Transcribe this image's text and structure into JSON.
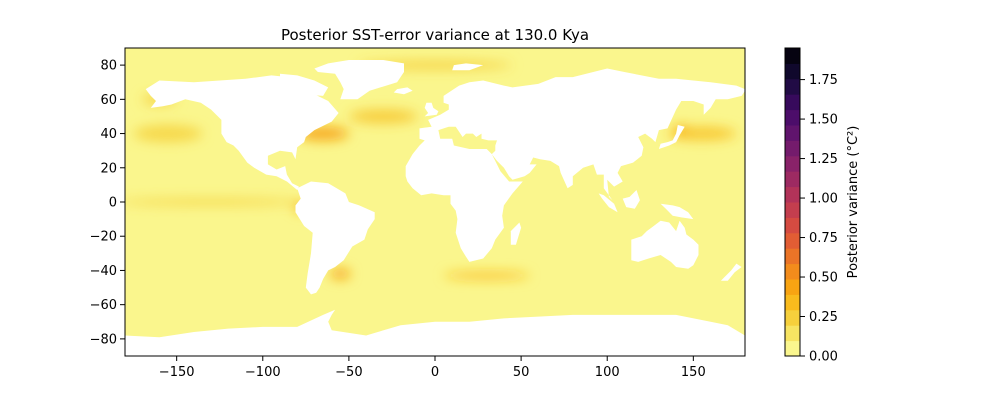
{
  "chart_data": {
    "type": "heatmap",
    "title": "Posterior SST-error variance at 130.0 Kya",
    "xlabel": "",
    "ylabel": "",
    "xlim": [
      -180,
      180
    ],
    "ylim": [
      -90,
      90
    ],
    "x_ticks": [
      -150,
      -100,
      -50,
      0,
      50,
      100,
      150
    ],
    "y_ticks": [
      -80,
      -60,
      -40,
      -20,
      0,
      20,
      40,
      60,
      80
    ],
    "grid": false,
    "colorbar": {
      "label": "Posterior variance (°C²)",
      "range": [
        0,
        1.95
      ],
      "ticks": [
        0.0,
        0.25,
        0.5,
        0.75,
        1.0,
        1.25,
        1.5,
        1.75
      ],
      "tick_labels": [
        "0.00",
        "0.25",
        "0.50",
        "0.75",
        "1.00",
        "1.25",
        "1.50",
        "1.75"
      ],
      "colormap": "inferno_r",
      "levels": 20
    },
    "field_summary": {
      "background_variance": 0.05,
      "land_color": "#ffffff",
      "hotspots": [
        {
          "lon": -65,
          "lat": 40,
          "lon_width": 30,
          "lat_width": 8,
          "value": 0.45
        },
        {
          "lon": -30,
          "lat": 50,
          "lon_width": 40,
          "lat_width": 8,
          "value": 0.28
        },
        {
          "lon": -155,
          "lat": 40,
          "lon_width": 40,
          "lat_width": 10,
          "value": 0.22
        },
        {
          "lon": 155,
          "lat": 40,
          "lon_width": 40,
          "lat_width": 8,
          "value": 0.3
        },
        {
          "lon": 143,
          "lat": 42,
          "lon_width": 8,
          "lat_width": 6,
          "value": 0.4
        },
        {
          "lon": -130,
          "lat": 0,
          "lon_width": 110,
          "lat_width": 4,
          "value": 0.22
        },
        {
          "lon": -78,
          "lat": -3,
          "lon_width": 8,
          "lat_width": 6,
          "value": 0.38
        },
        {
          "lon": -55,
          "lat": -42,
          "lon_width": 12,
          "lat_width": 6,
          "value": 0.45
        },
        {
          "lon": 30,
          "lat": -43,
          "lon_width": 50,
          "lat_width": 4,
          "value": 0.35
        },
        {
          "lon": 0,
          "lat": 80,
          "lon_width": 90,
          "lat_width": 5,
          "value": 0.25
        },
        {
          "lon": -160,
          "lat": 60,
          "lon_width": 20,
          "lat_width": 6,
          "value": 0.25
        }
      ]
    }
  }
}
